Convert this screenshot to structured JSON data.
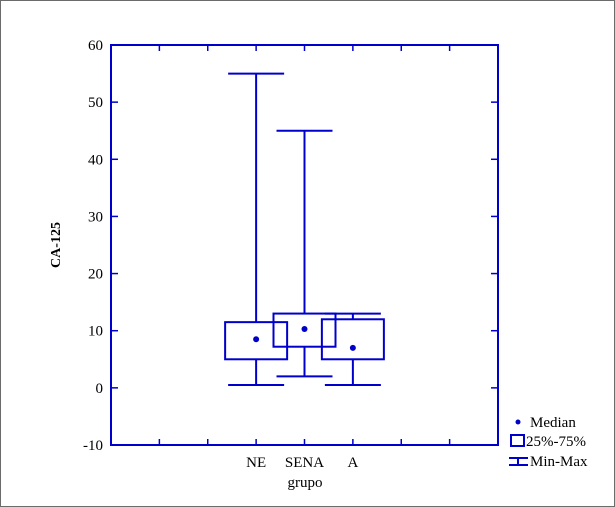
{
  "colors": {
    "series": "#0000cc",
    "text": "#000000",
    "frame": "#6b6b6b"
  },
  "chart_data": {
    "type": "box",
    "title": "",
    "xlabel": "grupo",
    "ylabel": "CA-125",
    "ylim": [
      -10,
      60
    ],
    "yticks": [
      -10,
      0,
      10,
      20,
      30,
      40,
      50,
      60
    ],
    "categories": [
      "NE",
      "SENA",
      "A"
    ],
    "boxes": [
      {
        "category": "NE",
        "min": 0.5,
        "q1": 5,
        "median": 8.5,
        "q3": 11.5,
        "max": 55
      },
      {
        "category": "SENA",
        "min": 2,
        "q1": 7.2,
        "median": 10.3,
        "q3": 13,
        "max": 45
      },
      {
        "category": "A",
        "min": 0.5,
        "q1": 5,
        "median": 7,
        "q3": 12,
        "max": 13
      }
    ],
    "legend": {
      "position": "bottom-right",
      "items": [
        "Median",
        "25%-75%",
        "Min-Max"
      ]
    },
    "grid": false
  }
}
